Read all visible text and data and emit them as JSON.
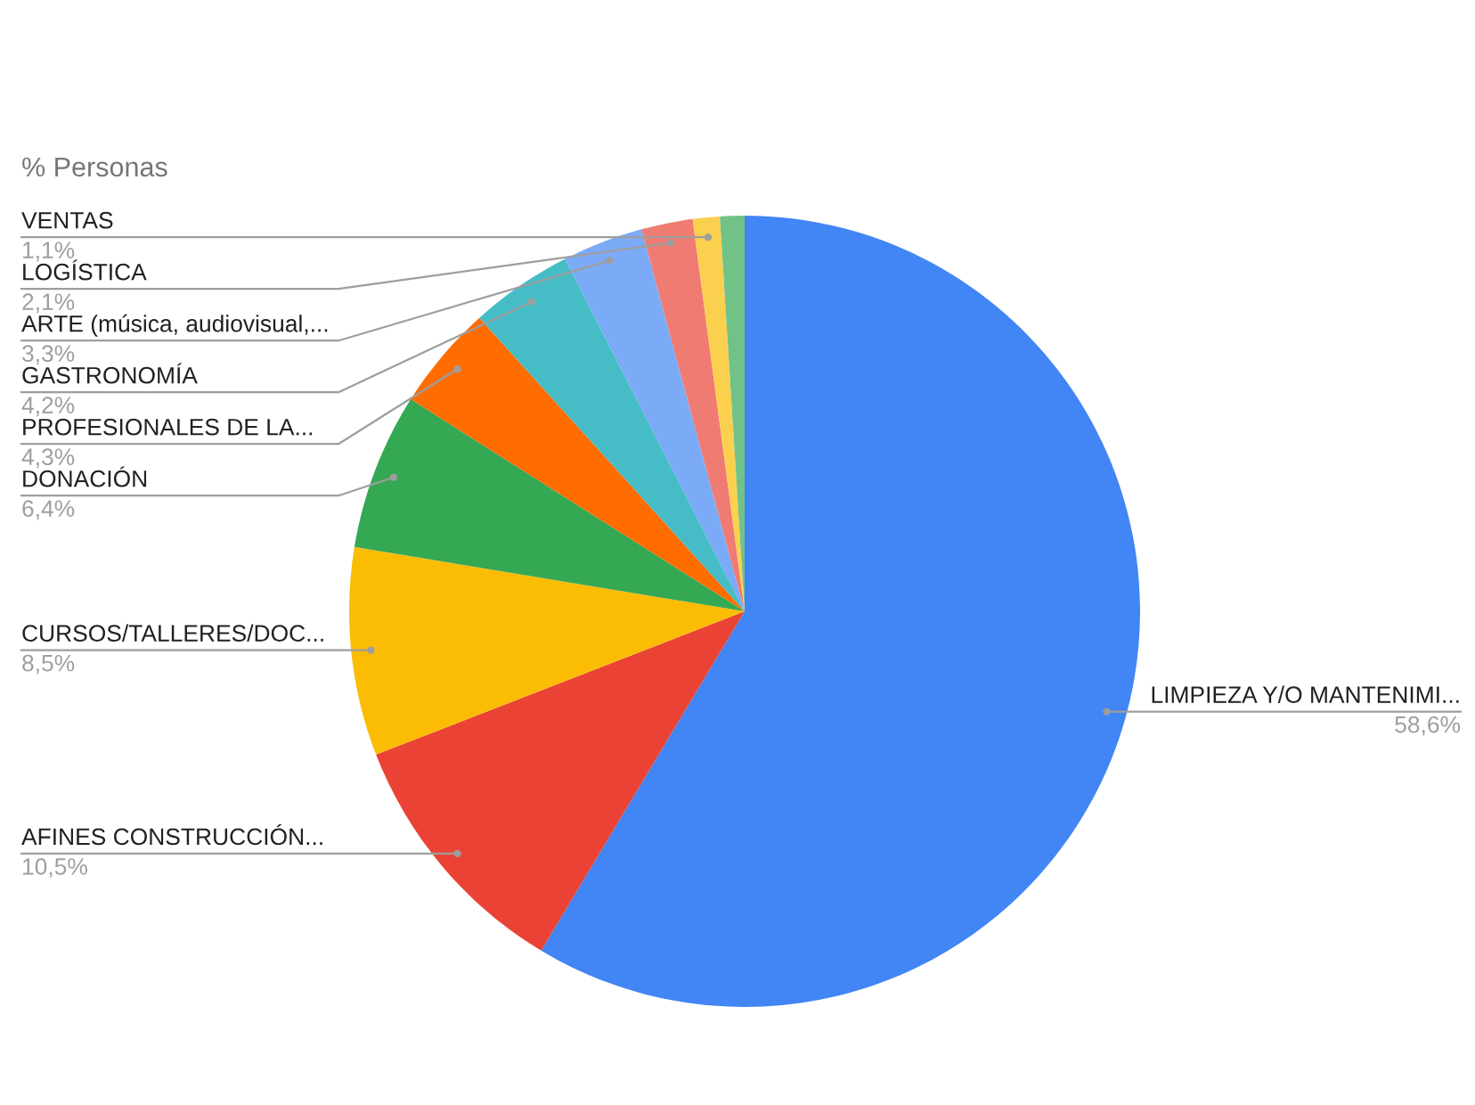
{
  "chart_data": {
    "type": "pie",
    "title": "% Personas",
    "categories": [
      "LIMPIEZA Y/O MANTENIMI...",
      "AFINES CONSTRUCCIÓN...",
      "CURSOS/TALLERES/DOC...",
      "DONACIÓN",
      "PROFESIONALES DE LA...",
      "GASTRONOMÍA",
      "ARTE (música, audiovisual,...",
      "LOGÍSTICA",
      "VENTAS",
      null
    ],
    "values": [
      58.6,
      10.5,
      8.5,
      6.4,
      4.3,
      4.2,
      3.3,
      2.1,
      1.1,
      1.0
    ],
    "value_labels": [
      "58,6%",
      "10,5%",
      "8,5%",
      "6,4%",
      "4,3%",
      "4,2%",
      "3,3%",
      "2,1%",
      "1,1%",
      null
    ],
    "colors": [
      "#4285f4",
      "#ea4335",
      "#fbbc04",
      "#34a853",
      "#ff6d01",
      "#46bdc6",
      "#7baaf7",
      "#f07b72",
      "#fcd04f",
      "#71c287"
    ]
  }
}
